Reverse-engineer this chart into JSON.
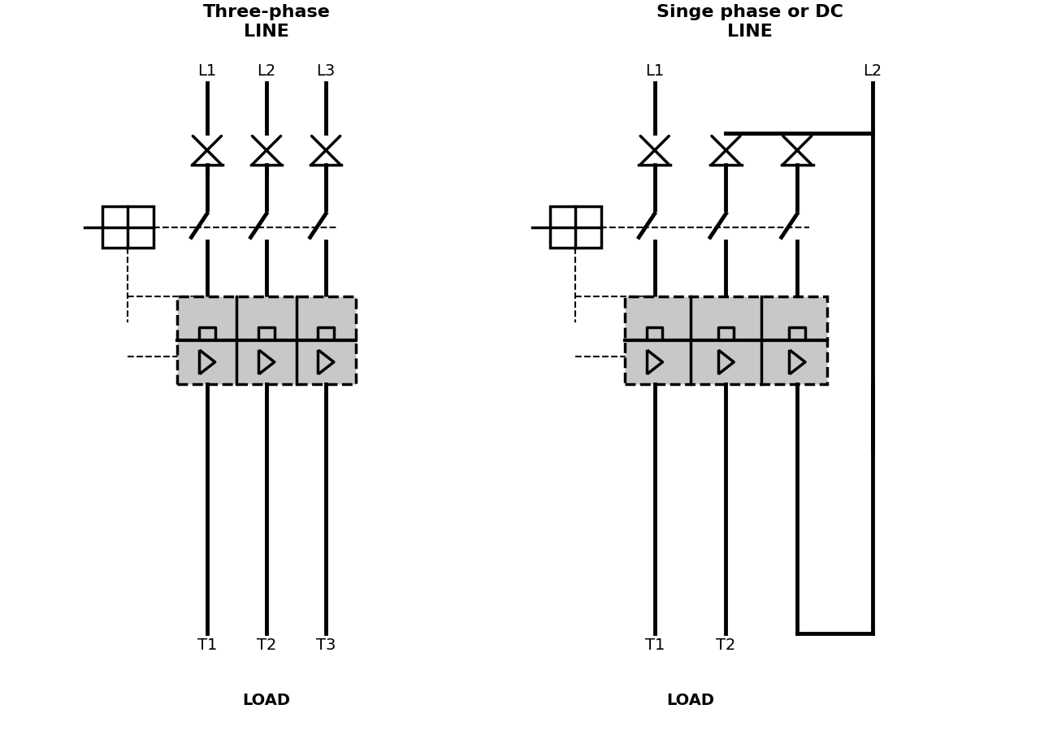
{
  "bg_color": "#ffffff",
  "line_color": "#000000",
  "dashed_color": "#000000",
  "gray_fill": "#c8c8c8",
  "title_left": "Three-phase\nLINE",
  "title_right": "Singe phase or DC\nLINE",
  "labels_left_top": [
    "L1",
    "L2",
    "L3"
  ],
  "labels_right_top": [
    "L1",
    "L2"
  ],
  "labels_left_bot": [
    "T1",
    "T2",
    "T3"
  ],
  "labels_right_bot": [
    "T1",
    "T2"
  ],
  "load_label": "LOAD",
  "lw": 2.5,
  "lw_thick": 3.5
}
